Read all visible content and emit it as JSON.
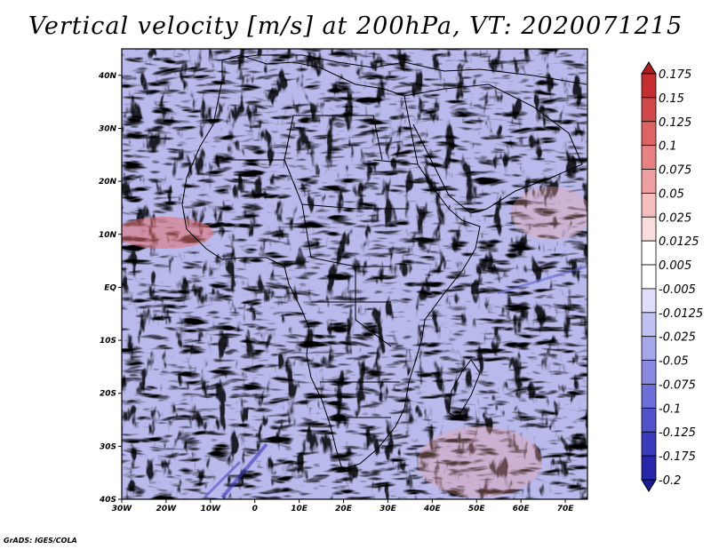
{
  "title": "Vertical velocity [m/s] at 200hPa, VT: 2020071215",
  "footer": "GrADS: IGES/COLA",
  "chart_data": {
    "type": "heatmap",
    "variable": "Vertical velocity",
    "units": "m/s",
    "level": "200hPa",
    "valid_time": "2020071215",
    "lon_range": [
      -30,
      75
    ],
    "lat_range": [
      -40,
      45
    ],
    "lat_ticks": [
      {
        "value": 40,
        "label": "40N"
      },
      {
        "value": 30,
        "label": "30N"
      },
      {
        "value": 20,
        "label": "20N"
      },
      {
        "value": 10,
        "label": "10N"
      },
      {
        "value": 0,
        "label": "EQ"
      },
      {
        "value": -10,
        "label": "10S"
      },
      {
        "value": -20,
        "label": "20S"
      },
      {
        "value": -30,
        "label": "30S"
      },
      {
        "value": -40,
        "label": "40S"
      }
    ],
    "lon_ticks": [
      {
        "value": -30,
        "label": "30W"
      },
      {
        "value": -20,
        "label": "20W"
      },
      {
        "value": -10,
        "label": "10W"
      },
      {
        "value": 0,
        "label": "0"
      },
      {
        "value": 10,
        "label": "10E"
      },
      {
        "value": 20,
        "label": "20E"
      },
      {
        "value": 30,
        "label": "30E"
      },
      {
        "value": 40,
        "label": "40E"
      },
      {
        "value": 50,
        "label": "50E"
      },
      {
        "value": 60,
        "label": "60E"
      },
      {
        "value": 70,
        "label": "70E"
      }
    ],
    "colorbar": {
      "labels": [
        "0.175",
        "0.15",
        "0.125",
        "0.1",
        "0.075",
        "0.05",
        "0.025",
        "0.0125",
        "0.005",
        "-0.005",
        "-0.0125",
        "-0.025",
        "-0.05",
        "-0.075",
        "-0.1",
        "-0.125",
        "-0.175",
        "-0.2"
      ],
      "colors": [
        "#b01a1a",
        "#c42e2e",
        "#d24848",
        "#dd6464",
        "#e68282",
        "#eea0a0",
        "#f4bebe",
        "#f9dcdc",
        "#ffffff",
        "#ffffff",
        "#dedef8",
        "#c2c2f0",
        "#a6a6ea",
        "#8a8ae2",
        "#6e6ed8",
        "#5252cc",
        "#3a3abd",
        "#2626aa",
        "#1a1a96"
      ]
    }
  }
}
